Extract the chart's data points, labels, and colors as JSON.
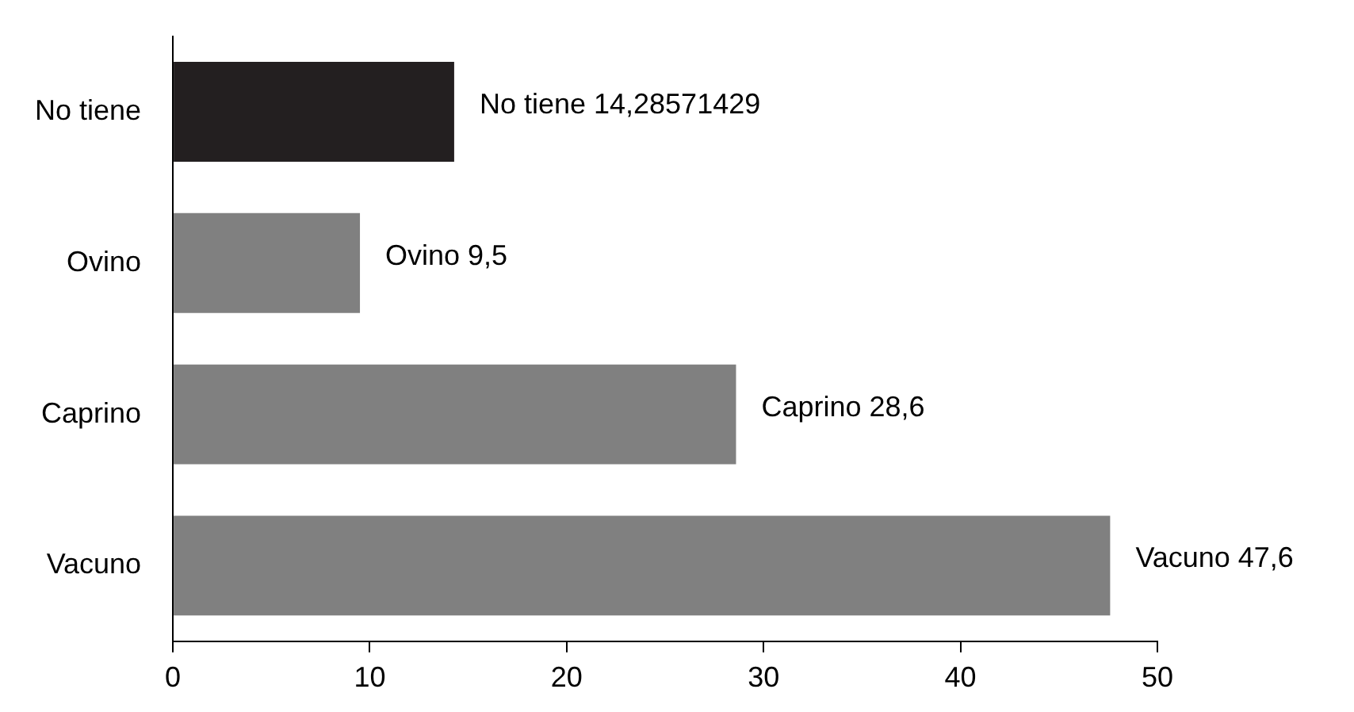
{
  "chart_data": {
    "type": "bar",
    "orientation": "horizontal",
    "categories": [
      "No tiene",
      "Ovino",
      "Caprino",
      "Vacuno"
    ],
    "values": [
      14.28571429,
      9.5,
      28.6,
      47.6
    ],
    "colors": [
      "#231f20",
      "#808080",
      "#808080",
      "#808080"
    ],
    "value_labels": [
      "No tiene 14,28571429",
      "Ovino 9,5",
      "Caprino 28,6",
      "Vacuno 47,6"
    ],
    "xlim": [
      0,
      50
    ],
    "xticks": [
      0,
      10,
      20,
      30,
      40,
      50
    ],
    "grid": false,
    "legend": false
  }
}
